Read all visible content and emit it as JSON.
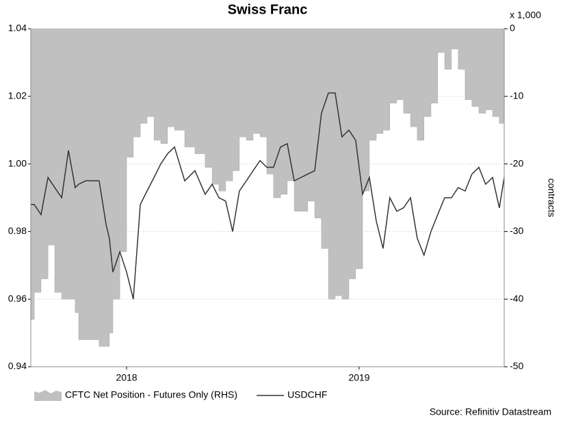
{
  "chart_data": {
    "type": "line",
    "title": "Swiss Franc",
    "y2_label": "contracts",
    "y2_unit": "x 1,000",
    "source": "Source: Refinitiv Datastream",
    "x": [
      2017.588,
      2017.603,
      2017.632,
      2017.662,
      2017.691,
      2017.721,
      2017.75,
      2017.779,
      2017.794,
      2017.824,
      2017.853,
      2017.882,
      2017.912,
      2017.926,
      2017.941,
      2017.971,
      2018,
      2018.029,
      2018.059,
      2018.088,
      2018.118,
      2018.147,
      2018.176,
      2018.206,
      2018.25,
      2018.294,
      2018.338,
      2018.368,
      2018.397,
      2018.426,
      2018.456,
      2018.485,
      2018.515,
      2018.544,
      2018.574,
      2018.603,
      2018.632,
      2018.662,
      2018.691,
      2018.721,
      2018.75,
      2018.779,
      2018.809,
      2018.838,
      2018.868,
      2018.897,
      2018.926,
      2018.956,
      2018.985,
      2019.015,
      2019.044,
      2019.074,
      2019.103,
      2019.132,
      2019.162,
      2019.191,
      2019.221,
      2019.25,
      2019.279,
      2019.309,
      2019.338,
      2019.368,
      2019.397,
      2019.426,
      2019.456,
      2019.485,
      2019.515,
      2019.544,
      2019.574,
      2019.603,
      2019.624
    ],
    "series": [
      {
        "name": "CFTC Net Position - Futures Only (RHS)",
        "color": "#c0c0c0",
        "axis": "y2",
        "kind": "area",
        "values": [
          -43,
          -39,
          -37,
          -32,
          -39,
          -40,
          -40,
          -42,
          -46,
          -46,
          -46,
          -47,
          -47,
          -45,
          -40,
          -33,
          -19,
          -16,
          -14,
          -13,
          -16.5,
          -17,
          -14.5,
          -15,
          -17.5,
          -18.5,
          -20.5,
          -23,
          -24,
          -22.5,
          -21,
          -16,
          -16.5,
          -15.5,
          -16,
          -21.5,
          -25,
          -24.5,
          -22.5,
          -27,
          -27,
          -25.5,
          -28,
          -32.5,
          -40,
          -39.5,
          -40,
          -37,
          -35.5,
          -24,
          -16.5,
          -15.5,
          -15,
          -11,
          -10.5,
          -12.5,
          -14.5,
          -16.5,
          -13,
          -11,
          -3.5,
          -6,
          -3,
          -6,
          -10.5,
          -11.5,
          -12.5,
          -12,
          -13,
          -14,
          -14
        ]
      },
      {
        "name": "USDCHF",
        "color": "#333333",
        "kind": "line",
        "values": [
          0.988,
          0.988,
          0.985,
          0.996,
          0.993,
          0.99,
          1.004,
          0.993,
          0.994,
          0.995,
          0.995,
          0.995,
          0.982,
          0.978,
          0.968,
          0.974,
          0.968,
          0.96,
          0.988,
          0.992,
          0.996,
          1.0,
          1.003,
          1.005,
          0.995,
          0.998,
          0.991,
          0.994,
          0.99,
          0.989,
          0.98,
          0.992,
          0.995,
          0.998,
          1.001,
          0.999,
          0.999,
          1.005,
          1.006,
          0.995,
          0.996,
          0.997,
          0.998,
          1.015,
          1.021,
          1.021,
          1.008,
          1.01,
          1.007,
          0.991,
          0.996,
          0.983,
          0.975,
          0.99,
          0.986,
          0.987,
          0.99,
          0.978,
          0.973,
          0.98,
          0.985,
          0.99,
          0.99,
          0.993,
          0.992,
          0.997,
          0.999,
          0.994,
          0.996,
          0.987,
          0.996
        ]
      }
    ],
    "xlim": [
      2017.588,
      2019.624
    ],
    "xticks": [
      2018,
      2019
    ],
    "ylim": [
      0.94,
      1.04
    ],
    "yticks": [
      0.94,
      0.96,
      0.98,
      {
        "value": 1,
        "label": "1.00"
      },
      1.02,
      1.04
    ],
    "y2lim": [
      -50,
      0
    ],
    "y2ticks": [
      -50,
      -40,
      -30,
      -20,
      -10,
      0
    ],
    "grid": true
  }
}
